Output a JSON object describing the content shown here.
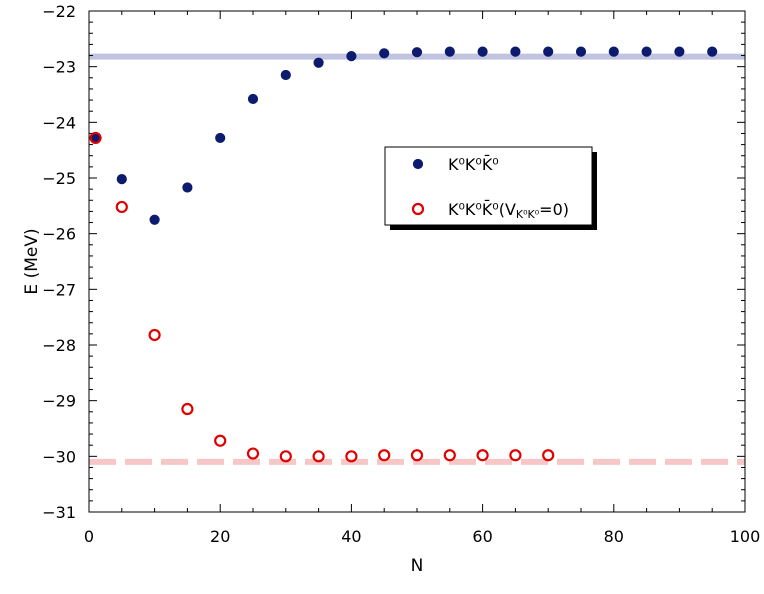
{
  "chart_data": {
    "type": "scatter",
    "xlabel": "N",
    "ylabel": "E (MeV)",
    "xlim": [
      0,
      100
    ],
    "ylim": [
      -31,
      -22
    ],
    "x_ticks": [
      0,
      20,
      40,
      60,
      80,
      100
    ],
    "y_ticks": [
      -22,
      -23,
      -24,
      -25,
      -26,
      -27,
      -28,
      -29,
      -30,
      -31
    ],
    "x_tick_labels": [
      "0",
      "20",
      "40",
      "60",
      "80",
      "100"
    ],
    "y_tick_labels": [
      "−22",
      "−23",
      "−24",
      "−25",
      "−26",
      "−27",
      "−28",
      "−29",
      "−30",
      "−31"
    ],
    "legend_position": "center-right",
    "series": [
      {
        "name": "K⁰K⁰K̄⁰",
        "marker": "filled-circle",
        "color": "#0d1b6e",
        "x": [
          1,
          5,
          10,
          15,
          20,
          25,
          30,
          35,
          40,
          45,
          50,
          55,
          60,
          65,
          70,
          75,
          80,
          85,
          90,
          95
        ],
        "y": [
          -24.28,
          -25.02,
          -25.75,
          -25.17,
          -24.28,
          -23.58,
          -23.15,
          -22.93,
          -22.81,
          -22.76,
          -22.74,
          -22.73,
          -22.73,
          -22.73,
          -22.73,
          -22.73,
          -22.73,
          -22.73,
          -22.73,
          -22.73
        ]
      },
      {
        "name_prefix": "K⁰K⁰K̄⁰(V",
        "name_subscript": "K⁰K⁰",
        "name_suffix": "=0)",
        "marker": "open-circle",
        "color": "#e00000",
        "x": [
          1,
          5,
          10,
          15,
          20,
          25,
          30,
          35,
          40,
          45,
          50,
          55,
          60,
          65,
          70
        ],
        "y": [
          -24.28,
          -25.52,
          -27.82,
          -29.15,
          -29.72,
          -29.95,
          -30.0,
          -30.0,
          -30.0,
          -29.98,
          -29.98,
          -29.98,
          -29.98,
          -29.98,
          -29.98
        ]
      }
    ],
    "reference_lines": [
      {
        "y": -22.82,
        "style": "solid",
        "color": "#c0c4e0"
      },
      {
        "y": -30.1,
        "style": "dashed",
        "color": "#f7c6c6"
      }
    ]
  }
}
